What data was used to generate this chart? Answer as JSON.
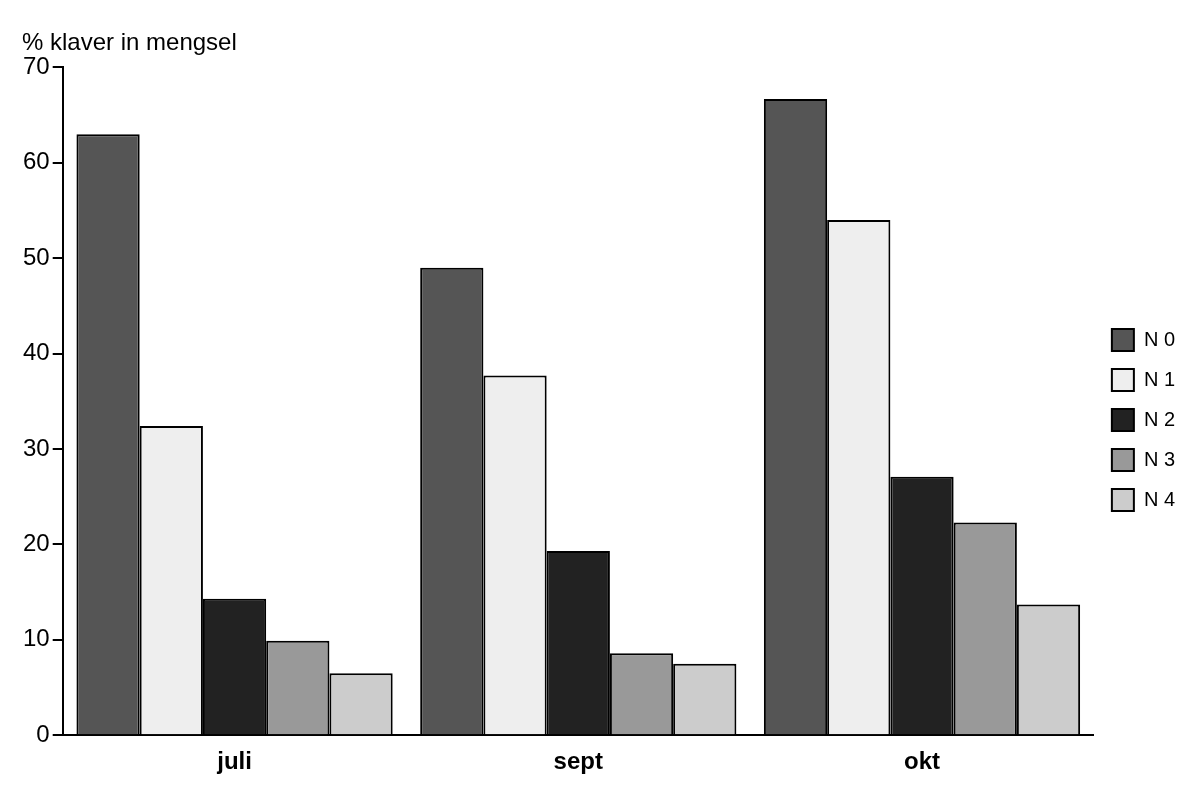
{
  "chart_data": {
    "type": "bar",
    "ylabel": "% klaver in mengsel",
    "categories": [
      "juli",
      "sept",
      "okt"
    ],
    "series": [
      {
        "name": "N 0",
        "color": "#555555",
        "values": [
          63,
          49,
          66.7
        ]
      },
      {
        "name": "N 1",
        "color": "#eeeeee",
        "values": [
          32.4,
          37.7,
          54
        ]
      },
      {
        "name": "N 2",
        "color": "#222222",
        "values": [
          14.3,
          19.3,
          27.1
        ]
      },
      {
        "name": "N 3",
        "color": "#999999",
        "values": [
          9.9,
          8.6,
          22.3
        ]
      },
      {
        "name": "N 4",
        "color": "#cccccc",
        "values": [
          6.5,
          7.5,
          13.7
        ]
      }
    ],
    "ylim": [
      0,
      70
    ],
    "yticks": [
      0,
      10,
      20,
      30,
      40,
      50,
      60,
      70
    ],
    "grid": false,
    "legend": "right"
  }
}
